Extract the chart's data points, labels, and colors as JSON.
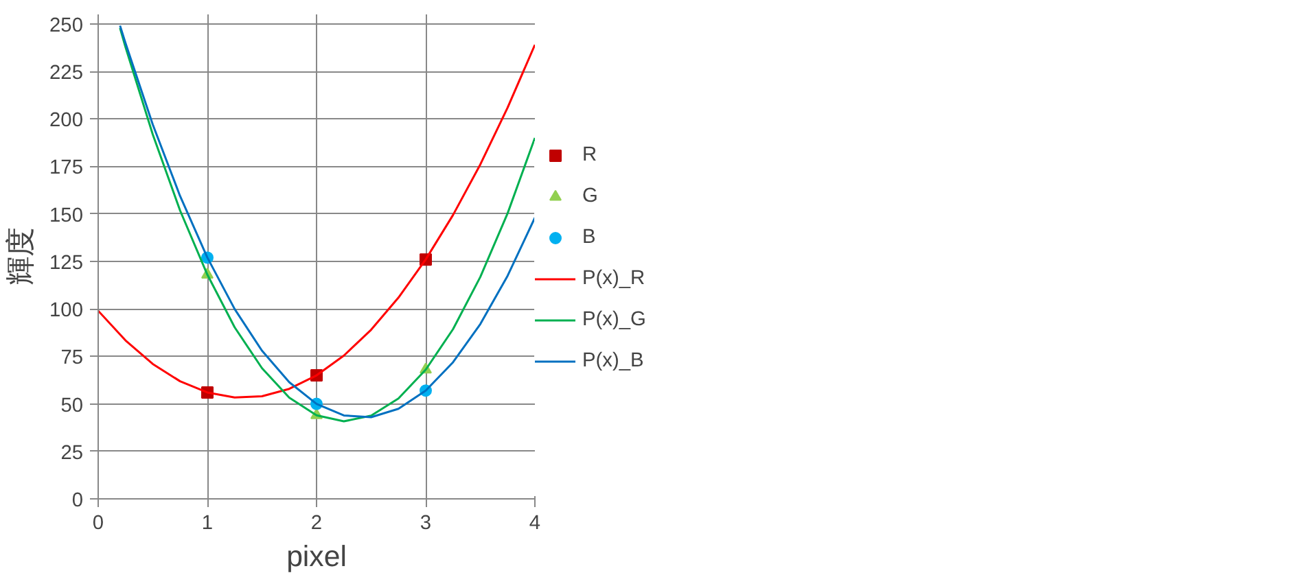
{
  "chart_data": {
    "type": "scatter",
    "xlabel": "pixel",
    "ylabel": "輝度",
    "xlim": [
      0,
      4
    ],
    "ylim": [
      0,
      255
    ],
    "xticks": [
      0,
      1,
      2,
      3,
      4
    ],
    "yticks": [
      0,
      25,
      50,
      75,
      100,
      125,
      150,
      175,
      200,
      225,
      250
    ],
    "grid": true,
    "legend": "right",
    "series": [
      {
        "name": "R",
        "marker": "square",
        "color": "#c00000",
        "x": [
          1,
          2,
          3
        ],
        "values": [
          56,
          65,
          126
        ]
      },
      {
        "name": "G",
        "marker": "triangle",
        "color": "#92d050",
        "x": [
          1,
          2,
          3
        ],
        "values": [
          118,
          44,
          68
        ]
      },
      {
        "name": "B",
        "marker": "circle",
        "color": "#00b0f0",
        "x": [
          1,
          2,
          3
        ],
        "values": [
          127,
          50,
          57
        ]
      },
      {
        "name": "P(x)_R",
        "type": "line",
        "line_style": "solid",
        "color": "#ff0000",
        "x": [
          0,
          0.25,
          0.5,
          0.75,
          1,
          1.25,
          1.5,
          1.75,
          2,
          2.25,
          2.5,
          2.75,
          3,
          3.25,
          3.5,
          3.75,
          4
        ],
        "values": [
          99,
          83.4,
          71,
          61.9,
          56,
          53.4,
          54,
          57.9,
          65,
          75.4,
          89,
          105.9,
          126,
          149.4,
          176,
          205.9,
          239
        ]
      },
      {
        "name": "P(x)_G",
        "type": "line",
        "line_style": "solid",
        "color": "#00b050",
        "x": [
          0.2,
          0.25,
          0.5,
          0.75,
          1,
          1.25,
          1.5,
          1.75,
          2,
          2.25,
          2.5,
          2.75,
          3,
          3.25,
          3.5,
          3.75,
          4
        ],
        "values": [
          247.8,
          237.8,
          191.8,
          151.8,
          118,
          90.3,
          68.8,
          53.3,
          44,
          40.8,
          43.8,
          52.8,
          68,
          89.3,
          116.8,
          150.3,
          190
        ]
      },
      {
        "name": "P(x)_B",
        "type": "line",
        "line_style": "solid",
        "color": "#0070c0",
        "x": [
          0.2,
          0.25,
          0.5,
          0.75,
          1,
          1.25,
          1.5,
          1.75,
          2,
          2.25,
          2.5,
          2.75,
          3,
          3.25,
          3.5,
          3.75,
          4
        ],
        "values": [
          249.1,
          239.9,
          197,
          159.4,
          127,
          99.9,
          78,
          61.4,
          50,
          43.9,
          43,
          47.4,
          57,
          71.9,
          92,
          117.4,
          148
        ]
      }
    ]
  }
}
